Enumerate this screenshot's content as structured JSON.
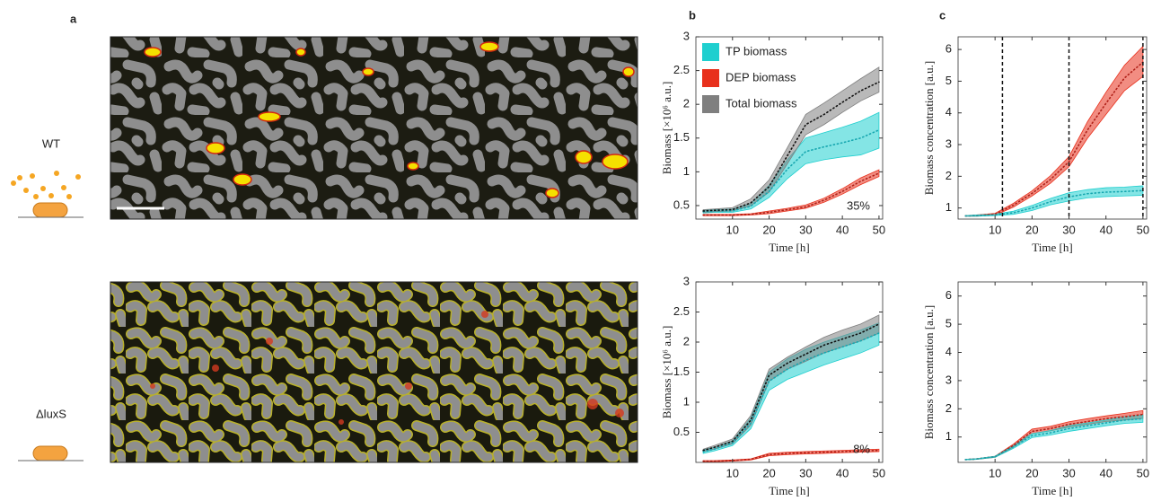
{
  "panels": {
    "a": "a",
    "b": "b",
    "c": "c"
  },
  "strains": [
    "WT",
    "ΔluxS"
  ],
  "chart_data": [
    {
      "type": "line",
      "xlabel": "Time [h]",
      "ylabel": "Biomass [×10⁶ a.u.]",
      "xlim": [
        0,
        51
      ],
      "xticks": [
        10,
        20,
        30,
        40,
        50
      ],
      "ylim": [
        0.3,
        3
      ],
      "yticks": [
        0.5,
        1,
        1.5,
        2,
        2.5,
        3
      ],
      "legend": "upper left",
      "annotation": {
        "text": "35%",
        "color": "#e0301e"
      },
      "x": [
        2,
        5,
        10,
        15,
        20,
        25,
        30,
        35,
        40,
        45,
        50
      ],
      "series": [
        {
          "name": "TP biomass",
          "color": "#1fcfcf",
          "line_color": "#17a7b0",
          "values": [
            0.41,
            0.42,
            0.42,
            0.49,
            0.71,
            1.04,
            1.3,
            1.37,
            1.43,
            1.5,
            1.62
          ],
          "lower": [
            0.39,
            0.4,
            0.4,
            0.45,
            0.62,
            0.9,
            1.12,
            1.18,
            1.22,
            1.25,
            1.35
          ],
          "upper": [
            0.43,
            0.44,
            0.45,
            0.53,
            0.8,
            1.18,
            1.5,
            1.58,
            1.66,
            1.75,
            1.88
          ]
        },
        {
          "name": "DEP biomass",
          "color": "#e8301c",
          "line_color": "#b02018",
          "values": [
            0.36,
            0.36,
            0.36,
            0.37,
            0.4,
            0.44,
            0.48,
            0.58,
            0.71,
            0.86,
            0.98
          ],
          "lower": [
            0.35,
            0.35,
            0.35,
            0.36,
            0.38,
            0.42,
            0.46,
            0.55,
            0.67,
            0.81,
            0.93
          ],
          "upper": [
            0.37,
            0.37,
            0.37,
            0.38,
            0.42,
            0.46,
            0.51,
            0.61,
            0.75,
            0.91,
            1.03
          ]
        },
        {
          "name": "Total biomass",
          "color": "#7f7f7f",
          "line_color": "#111111",
          "values": [
            0.42,
            0.43,
            0.44,
            0.54,
            0.78,
            1.24,
            1.7,
            1.85,
            2.03,
            2.2,
            2.33
          ],
          "lower": [
            0.4,
            0.41,
            0.42,
            0.5,
            0.7,
            1.12,
            1.55,
            1.7,
            1.88,
            2.05,
            2.18
          ],
          "upper": [
            0.44,
            0.45,
            0.47,
            0.6,
            0.88,
            1.36,
            1.85,
            2.02,
            2.2,
            2.38,
            2.55
          ]
        }
      ]
    },
    {
      "type": "line",
      "xlabel": "Time [h]",
      "ylabel": "Biomass concentration [a.u.]",
      "xlim": [
        0,
        51
      ],
      "xticks": [
        10,
        20,
        30,
        40,
        50
      ],
      "ylim": [
        0.65,
        6.4
      ],
      "yticks": [
        1,
        2,
        3,
        4,
        5,
        6
      ],
      "vlines": [
        12,
        30,
        50
      ],
      "x": [
        2,
        5,
        10,
        15,
        20,
        25,
        30,
        35,
        40,
        45,
        50
      ],
      "series": [
        {
          "color": "#e8301c",
          "line_color": "#b02018",
          "values": [
            0.75,
            0.76,
            0.8,
            1.09,
            1.46,
            1.9,
            2.46,
            3.46,
            4.3,
            5.1,
            5.6
          ],
          "lower": [
            0.74,
            0.74,
            0.77,
            1.03,
            1.38,
            1.78,
            2.3,
            3.2,
            3.95,
            4.7,
            5.15
          ],
          "upper": [
            0.76,
            0.78,
            0.83,
            1.15,
            1.54,
            2.02,
            2.62,
            3.72,
            4.65,
            5.5,
            6.1
          ]
        },
        {
          "color": "#1fcfcf",
          "line_color": "#17a7b0",
          "values": [
            0.75,
            0.76,
            0.78,
            0.85,
            1.0,
            1.2,
            1.35,
            1.45,
            1.5,
            1.52,
            1.55
          ],
          "lower": [
            0.74,
            0.74,
            0.76,
            0.8,
            0.92,
            1.1,
            1.22,
            1.32,
            1.36,
            1.38,
            1.4
          ],
          "upper": [
            0.76,
            0.78,
            0.8,
            0.9,
            1.08,
            1.3,
            1.48,
            1.58,
            1.64,
            1.66,
            1.7
          ]
        }
      ]
    },
    {
      "type": "line",
      "xlabel": "Time [h]",
      "ylabel": "Biomass [×10⁶ a.u.]",
      "xlim": [
        0,
        51
      ],
      "xticks": [
        10,
        20,
        30,
        40,
        50
      ],
      "ylim": [
        0,
        3
      ],
      "yticks": [
        0.5,
        1,
        1.5,
        2,
        2.5,
        3
      ],
      "annotation": {
        "text": "8%",
        "color": "#e0301e"
      },
      "x": [
        2,
        5,
        10,
        15,
        20,
        25,
        30,
        35,
        40,
        45,
        50
      ],
      "series": [
        {
          "color": "#1fcfcf",
          "line_color": "#17a7b0",
          "values": [
            0.18,
            0.22,
            0.32,
            0.65,
            1.35,
            1.55,
            1.7,
            1.82,
            1.92,
            2.02,
            2.15
          ],
          "lower": [
            0.15,
            0.19,
            0.28,
            0.56,
            1.2,
            1.38,
            1.5,
            1.62,
            1.72,
            1.82,
            1.95
          ],
          "upper": [
            0.21,
            0.25,
            0.36,
            0.74,
            1.5,
            1.72,
            1.88,
            2.0,
            2.1,
            2.2,
            2.32
          ]
        },
        {
          "color": "#e8301c",
          "line_color": "#b02018",
          "values": [
            0.02,
            0.02,
            0.03,
            0.05,
            0.13,
            0.15,
            0.16,
            0.17,
            0.18,
            0.19,
            0.2
          ],
          "lower": [
            0.01,
            0.01,
            0.02,
            0.04,
            0.11,
            0.13,
            0.14,
            0.15,
            0.16,
            0.17,
            0.18
          ],
          "upper": [
            0.03,
            0.03,
            0.04,
            0.06,
            0.15,
            0.17,
            0.18,
            0.19,
            0.2,
            0.21,
            0.22
          ]
        },
        {
          "color": "#7f7f7f",
          "line_color": "#111111",
          "values": [
            0.2,
            0.25,
            0.35,
            0.7,
            1.45,
            1.65,
            1.8,
            1.95,
            2.05,
            2.15,
            2.3
          ],
          "lower": [
            0.18,
            0.22,
            0.31,
            0.62,
            1.35,
            1.55,
            1.68,
            1.82,
            1.92,
            2.02,
            2.15
          ],
          "upper": [
            0.22,
            0.28,
            0.39,
            0.78,
            1.55,
            1.75,
            1.92,
            2.08,
            2.2,
            2.3,
            2.45
          ]
        }
      ]
    },
    {
      "type": "line",
      "xlabel": "Time [h]",
      "ylabel": "Biomass concentration [a.u.]",
      "xlim": [
        0,
        51
      ],
      "xticks": [
        10,
        20,
        30,
        40,
        50
      ],
      "ylim": [
        0.1,
        6.5
      ],
      "yticks": [
        1,
        2,
        3,
        4,
        5,
        6
      ],
      "x": [
        2,
        5,
        10,
        15,
        20,
        25,
        30,
        35,
        40,
        45,
        50
      ],
      "series": [
        {
          "color": "#e8301c",
          "line_color": "#b02018",
          "values": [
            0.2,
            0.22,
            0.3,
            0.7,
            1.2,
            1.3,
            1.45,
            1.55,
            1.65,
            1.72,
            1.8
          ],
          "lower": [
            0.19,
            0.21,
            0.28,
            0.65,
            1.12,
            1.22,
            1.36,
            1.45,
            1.55,
            1.6,
            1.66
          ],
          "upper": [
            0.21,
            0.23,
            0.32,
            0.75,
            1.28,
            1.38,
            1.54,
            1.65,
            1.75,
            1.84,
            1.94
          ]
        },
        {
          "color": "#1fcfcf",
          "line_color": "#17a7b0",
          "values": [
            0.2,
            0.22,
            0.3,
            0.65,
            1.05,
            1.15,
            1.3,
            1.4,
            1.5,
            1.6,
            1.65
          ],
          "lower": [
            0.19,
            0.21,
            0.28,
            0.6,
            0.98,
            1.07,
            1.2,
            1.3,
            1.4,
            1.48,
            1.52
          ],
          "upper": [
            0.21,
            0.23,
            0.32,
            0.7,
            1.12,
            1.23,
            1.4,
            1.5,
            1.6,
            1.72,
            1.78
          ]
        }
      ]
    }
  ]
}
